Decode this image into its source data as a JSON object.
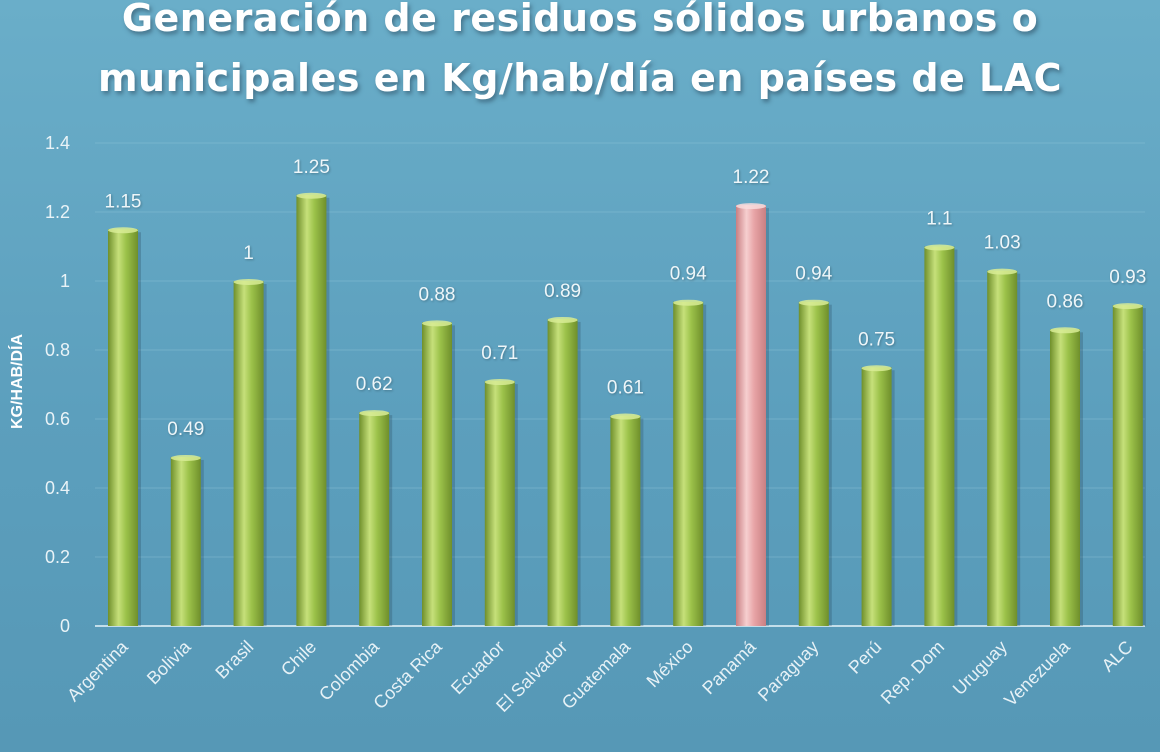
{
  "chart_data": {
    "type": "bar",
    "title_lines": [
      "Generación de residuos sólidos urbanos o",
      "municipales en Kg/hab/día en países de LAC"
    ],
    "ylabel": "KG/HAB/DÍA",
    "xlabel": "",
    "ylim": [
      0,
      1.4
    ],
    "yticks": [
      "0",
      "0.2",
      "0.4",
      "0.6",
      "0.8",
      "1",
      "1.2",
      "1.4"
    ],
    "categories": [
      "Argentina",
      "Bolivia",
      "Brasil",
      "Chile",
      "Colombia",
      "Costa Rica",
      "Ecuador",
      "El Salvador",
      "Guatemala",
      "México",
      "Panamá",
      "Paraguay",
      "Perú",
      "Rep. Dom",
      "Uruguay",
      "Venezuela",
      "ALC"
    ],
    "values": [
      1.15,
      0.49,
      1,
      1.25,
      0.62,
      0.88,
      0.71,
      0.89,
      0.61,
      0.94,
      1.22,
      0.94,
      0.75,
      1.1,
      1.03,
      0.86,
      0.93
    ],
    "value_labels": [
      "1.15",
      "0.49",
      "1",
      "1.25",
      "0.62",
      "0.88",
      "0.71",
      "0.89",
      "0.61",
      "0.94",
      "1.22",
      "0.94",
      "0.75",
      "1.1",
      "1.03",
      "0.86",
      "0.93"
    ],
    "highlight_category": "Panamá",
    "grid": true,
    "legend": "none",
    "colors": {
      "bar": "#9cc24a",
      "bar_highlight": "#e8a5a7",
      "background": "#5fa2c0",
      "gridline": "#8fc3d8"
    }
  }
}
